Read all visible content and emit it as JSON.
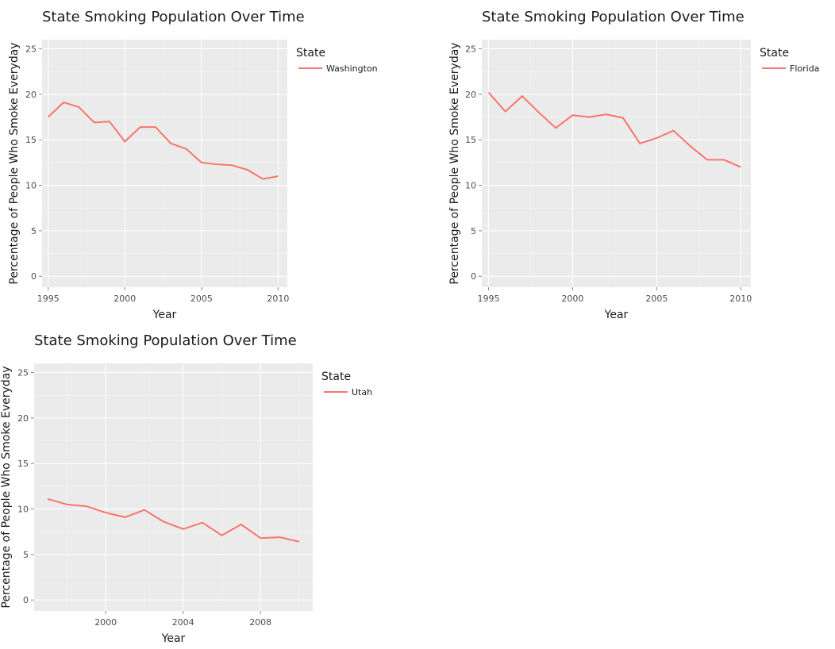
{
  "chart_data": [
    {
      "type": "line",
      "title": "State Smoking Population Over Time",
      "xlabel": "Year",
      "ylabel": "Percentage of People Who Smoke Everyday",
      "xlim": [
        1994.6,
        2010.6
      ],
      "ylim": [
        -1.2,
        26
      ],
      "xticks": [
        1995,
        2000,
        2005,
        2010
      ],
      "yticks": [
        0,
        5,
        10,
        15,
        20,
        25
      ],
      "grid": true,
      "legend_title": "State",
      "legend_position": "right",
      "series": [
        {
          "name": "Washington",
          "color": "#F8766D",
          "x": [
            1995,
            1996,
            1997,
            1998,
            1999,
            2000,
            2001,
            2002,
            2003,
            2004,
            2005,
            2006,
            2007,
            2008,
            2009,
            2010
          ],
          "y": [
            17.5,
            19.1,
            18.6,
            16.9,
            17.0,
            14.8,
            16.4,
            16.4,
            14.6,
            14.0,
            12.5,
            12.3,
            12.2,
            11.7,
            10.7,
            11.0
          ]
        }
      ]
    },
    {
      "type": "line",
      "title": "State Smoking Population Over Time",
      "xlabel": "Year",
      "ylabel": "Percentage of People Who Smoke Everyday",
      "xlim": [
        1994.6,
        2010.6
      ],
      "ylim": [
        -1.2,
        26
      ],
      "xticks": [
        1995,
        2000,
        2005,
        2010
      ],
      "yticks": [
        0,
        5,
        10,
        15,
        20,
        25
      ],
      "grid": true,
      "legend_title": "State",
      "legend_position": "right",
      "series": [
        {
          "name": "Florida",
          "color": "#F8766D",
          "x": [
            1995,
            1996,
            1997,
            1998,
            1999,
            2000,
            2001,
            2002,
            2003,
            2004,
            2005,
            2006,
            2007,
            2008,
            2009,
            2010
          ],
          "y": [
            20.2,
            18.1,
            19.8,
            18.0,
            16.3,
            17.7,
            17.5,
            17.8,
            17.4,
            14.6,
            15.2,
            16.0,
            14.3,
            12.8,
            12.8,
            12.0
          ]
        }
      ]
    },
    {
      "type": "line",
      "title": "State Smoking Population Over Time",
      "xlabel": "Year",
      "ylabel": "Percentage of People Who Smoke Everyday",
      "xlim": [
        1996.3,
        2010.7
      ],
      "ylim": [
        -1.2,
        26
      ],
      "xticks": [
        2000,
        2004,
        2008
      ],
      "yticks": [
        0,
        5,
        10,
        15,
        20,
        25
      ],
      "grid": true,
      "legend_title": "State",
      "legend_position": "right",
      "series": [
        {
          "name": "Utah",
          "color": "#F8766D",
          "x": [
            1997,
            1998,
            1999,
            2000,
            2001,
            2002,
            2003,
            2004,
            2005,
            2006,
            2007,
            2008,
            2009,
            2010
          ],
          "y": [
            11.1,
            10.5,
            10.3,
            9.6,
            9.1,
            9.9,
            8.6,
            7.8,
            8.5,
            7.1,
            8.3,
            6.8,
            6.9,
            6.4
          ]
        }
      ]
    }
  ]
}
